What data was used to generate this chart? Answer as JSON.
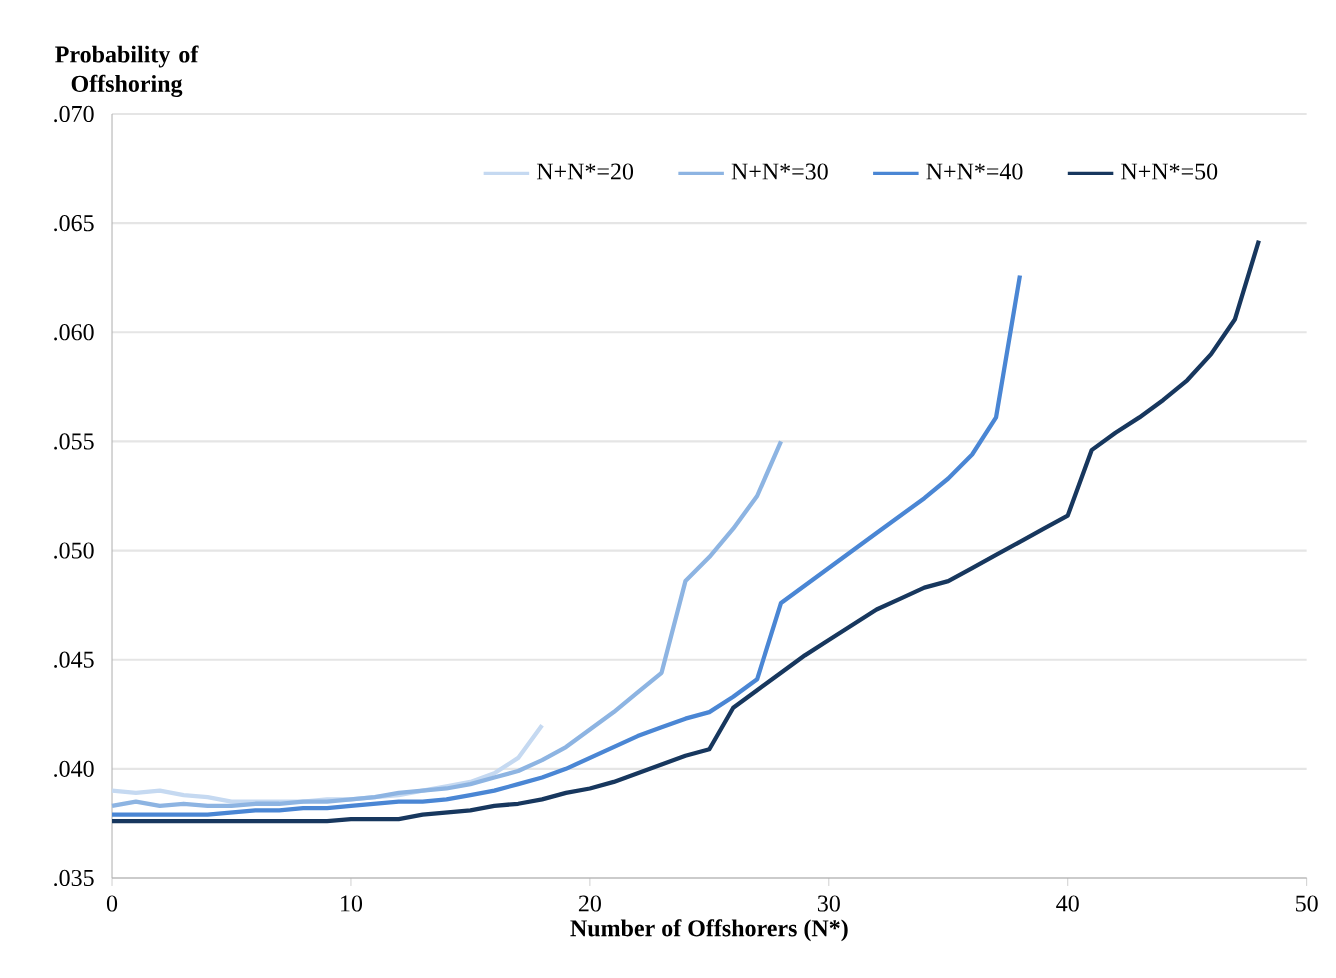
{
  "chart_data": {
    "type": "line",
    "xlabel": "Number of Offshorers (N*)",
    "ylabel": "Probability of Offshoring",
    "xlim": [
      0,
      50
    ],
    "xticks": [
      0,
      10,
      20,
      30,
      40,
      50
    ],
    "ylim": [
      0.035,
      0.07
    ],
    "yticks": [
      {
        "value": 0.035,
        "label": ".035"
      },
      {
        "value": 0.04,
        "label": ".040"
      },
      {
        "value": 0.045,
        "label": ".045"
      },
      {
        "value": 0.05,
        "label": ".050"
      },
      {
        "value": 0.055,
        "label": ".055"
      },
      {
        "value": 0.06,
        "label": ".060"
      },
      {
        "value": 0.065,
        "label": ".065"
      },
      {
        "value": 0.07,
        "label": ".070"
      }
    ],
    "grid": "y",
    "legend": "top",
    "marker": "none",
    "line_style": "solid",
    "series": [
      {
        "name": "N+N*=20",
        "color": "#c5d9f1",
        "x": [
          0,
          1,
          2,
          3,
          4,
          5,
          6,
          7,
          8,
          9,
          10,
          11,
          12,
          13,
          14,
          15,
          16,
          17,
          18
        ],
        "values": [
          0.039,
          0.0389,
          0.039,
          0.0388,
          0.0387,
          0.0385,
          0.0385,
          0.0385,
          0.0385,
          0.0386,
          0.0386,
          0.0387,
          0.0388,
          0.039,
          0.0392,
          0.0394,
          0.0398,
          0.0405,
          0.042
        ]
      },
      {
        "name": "N+N*=30",
        "color": "#8db4e2",
        "x": [
          0,
          1,
          2,
          3,
          4,
          5,
          6,
          7,
          8,
          9,
          10,
          11,
          12,
          13,
          14,
          15,
          16,
          17,
          18,
          19,
          20,
          21,
          22,
          23,
          24,
          25,
          26,
          27,
          28
        ],
        "values": [
          0.0383,
          0.0385,
          0.0383,
          0.0384,
          0.0383,
          0.0383,
          0.0384,
          0.0384,
          0.0385,
          0.0385,
          0.0386,
          0.0387,
          0.0389,
          0.039,
          0.0391,
          0.0393,
          0.0396,
          0.0399,
          0.0404,
          0.041,
          0.0418,
          0.0426,
          0.0435,
          0.0444,
          0.0486,
          0.0497,
          0.051,
          0.0525,
          0.055
        ]
      },
      {
        "name": "N+N*=40",
        "color": "#4a86d4",
        "x": [
          0,
          1,
          2,
          3,
          4,
          5,
          6,
          7,
          8,
          9,
          10,
          11,
          12,
          13,
          14,
          15,
          16,
          17,
          18,
          19,
          20,
          21,
          22,
          23,
          24,
          25,
          26,
          27,
          28,
          29,
          30,
          31,
          32,
          33,
          34,
          35,
          36,
          37,
          38
        ],
        "values": [
          0.0379,
          0.0379,
          0.0379,
          0.0379,
          0.0379,
          0.038,
          0.0381,
          0.0381,
          0.0382,
          0.0382,
          0.0383,
          0.0384,
          0.0385,
          0.0385,
          0.0386,
          0.0388,
          0.039,
          0.0393,
          0.0396,
          0.04,
          0.0405,
          0.041,
          0.0415,
          0.0419,
          0.0423,
          0.0426,
          0.0433,
          0.0441,
          0.0476,
          0.0484,
          0.0492,
          0.05,
          0.0508,
          0.0516,
          0.0524,
          0.0533,
          0.0544,
          0.0561,
          0.0626
        ]
      },
      {
        "name": "N+N*=50",
        "color": "#17375e",
        "x": [
          0,
          1,
          2,
          3,
          4,
          5,
          6,
          7,
          8,
          9,
          10,
          11,
          12,
          13,
          14,
          15,
          16,
          17,
          18,
          19,
          20,
          21,
          22,
          23,
          24,
          25,
          26,
          27,
          28,
          29,
          30,
          31,
          32,
          33,
          34,
          35,
          36,
          37,
          38,
          39,
          40,
          41,
          42,
          43,
          44,
          45,
          46,
          47,
          48
        ],
        "values": [
          0.0376,
          0.0376,
          0.0376,
          0.0376,
          0.0376,
          0.0376,
          0.0376,
          0.0376,
          0.0376,
          0.0376,
          0.0377,
          0.0377,
          0.0377,
          0.0379,
          0.038,
          0.0381,
          0.0383,
          0.0384,
          0.0386,
          0.0389,
          0.0391,
          0.0394,
          0.0398,
          0.0402,
          0.0406,
          0.0409,
          0.0428,
          0.0436,
          0.0444,
          0.0452,
          0.0459,
          0.0466,
          0.0473,
          0.0478,
          0.0483,
          0.0486,
          0.0492,
          0.0498,
          0.0504,
          0.051,
          0.0516,
          0.0546,
          0.0554,
          0.0561,
          0.0569,
          0.0578,
          0.059,
          0.0606,
          0.0642
        ]
      }
    ]
  }
}
